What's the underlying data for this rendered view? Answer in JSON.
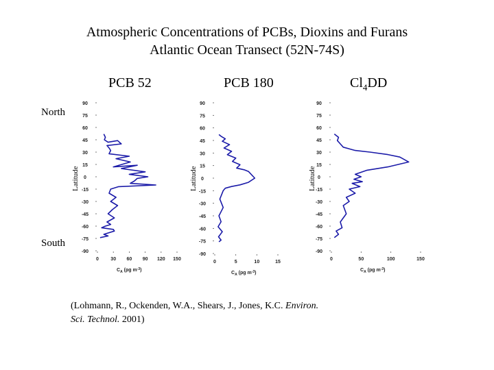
{
  "title_line1": "Atmospheric Concentrations of PCBs, Dioxins and Furans",
  "title_line2": "Atlantic Ocean Transect (52N-74S)",
  "labels": {
    "north": "North",
    "south": "South"
  },
  "citation": {
    "line1_prefix": "(Lohmann, R., Ockenden, W.A., Shears, J., Jones, K.C. ",
    "line1_journal": "Environ.",
    "line2_journal": "Sci. Technol.",
    "line2_suffix": " 2001)"
  },
  "colors": {
    "line": "#1a1aa8",
    "text": "#000000"
  },
  "chart_data": [
    {
      "type": "line",
      "title": "PCB 52",
      "ylabel": "Latitude",
      "xlabel": "C",
      "xlabel_sub": "A",
      "xlabel_unit": " (pg m",
      "xlabel_sup": "-3",
      "xlabel_end": ")",
      "xlim": [
        0,
        150
      ],
      "ylim": [
        -90,
        90
      ],
      "xticks": [
        "0",
        "30",
        "60",
        "90",
        "120",
        "150"
      ],
      "yticks": [
        "90",
        "75",
        "60",
        "45",
        "30",
        "15",
        "0",
        "-15",
        "-30",
        "-45",
        "-60",
        "-75",
        "-90"
      ],
      "series": [
        {
          "x": [
            12,
            15,
            13,
            20,
            38,
            45,
            18,
            22,
            25,
            22,
            60,
            35,
            62,
            30,
            75,
            45,
            90,
            60,
            95,
            75,
            70,
            62,
            110,
            40,
            25,
            22,
            35,
            25,
            38,
            28,
            20,
            32,
            18,
            25,
            15,
            8,
            30,
            32,
            12,
            20,
            5
          ],
          "y": [
            52,
            48,
            45,
            42,
            44,
            40,
            38,
            35,
            32,
            28,
            25,
            22,
            18,
            12,
            14,
            10,
            6,
            3,
            0,
            -2,
            -5,
            -8,
            -10,
            -12,
            -15,
            -20,
            -25,
            -30,
            -35,
            -40,
            -45,
            -50,
            -55,
            -58,
            -60,
            -62,
            -64,
            -66,
            -70,
            -72,
            -74
          ]
        }
      ]
    },
    {
      "type": "line",
      "title": "PCB 180",
      "ylabel": "Latitude",
      "xlabel": "C",
      "xlabel_sub": "A",
      "xlabel_unit": " (pg m",
      "xlabel_sup": "-3",
      "xlabel_end": ")",
      "xlim": [
        0,
        15
      ],
      "ylim": [
        -90,
        90
      ],
      "xticks": [
        "0",
        "5",
        "10",
        "15"
      ],
      "yticks": [
        "90",
        "75",
        "60",
        "45",
        "30",
        "15",
        "0",
        "-15",
        "-30",
        "-45",
        "-60",
        "-75",
        "-90"
      ],
      "series": [
        {
          "x": [
            1,
            1.5,
            2.5,
            1.8,
            3.5,
            2.2,
            4,
            3,
            5,
            4.2,
            6,
            5.2,
            7,
            8,
            9.5,
            8,
            6,
            4,
            2.5,
            2,
            1.2,
            2,
            1,
            1.5,
            0.8,
            1.8,
            0.9,
            1.5,
            1
          ],
          "y": [
            52,
            50,
            47,
            44,
            40,
            36,
            32,
            28,
            24,
            20,
            16,
            12,
            10,
            8,
            0,
            -5,
            -8,
            -10,
            -12,
            -15,
            -25,
            -35,
            -45,
            -52,
            -58,
            -64,
            -70,
            -74,
            -76
          ]
        }
      ]
    },
    {
      "type": "line",
      "title": "Cl",
      "title_sub": "4",
      "title_end": "DD",
      "ylabel": "Latitude",
      "xlabel": "C",
      "xlabel_sub": "A",
      "xlabel_unit": " (pg m",
      "xlabel_sup": "-3",
      "xlabel_end": ")",
      "xlim": [
        0,
        150
      ],
      "ylim": [
        -90,
        90
      ],
      "xticks": [
        "0",
        "50",
        "100",
        "150"
      ],
      "yticks": [
        "90",
        "75",
        "60",
        "45",
        "30",
        "15",
        "0",
        "-15",
        "-30",
        "-45",
        "-60",
        "-75",
        "-90"
      ],
      "series": [
        {
          "x": [
            5,
            12,
            10,
            15,
            20,
            40,
            65,
            95,
            115,
            130,
            95,
            60,
            40,
            50,
            38,
            52,
            35,
            48,
            30,
            40,
            25,
            30,
            20,
            25,
            15,
            18,
            8,
            12,
            5
          ],
          "y": [
            52,
            48,
            44,
            40,
            36,
            32,
            30,
            27,
            24,
            18,
            12,
            8,
            3,
            0,
            -3,
            -6,
            -8,
            -12,
            -15,
            -20,
            -25,
            -30,
            -35,
            -45,
            -55,
            -62,
            -66,
            -70,
            -74
          ]
        }
      ]
    }
  ]
}
